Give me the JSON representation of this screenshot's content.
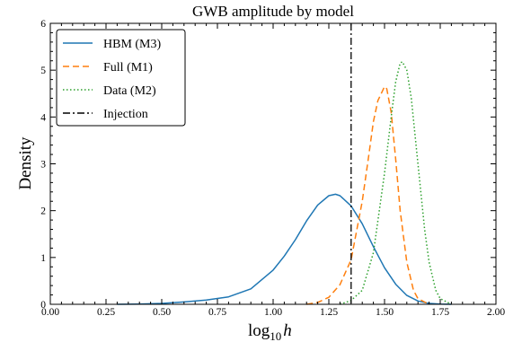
{
  "chart_data": {
    "type": "line",
    "title": "GWB amplitude by model",
    "xlabel_main": "log",
    "xlabel_sub": "10",
    "xlabel_var": "h",
    "ylabel": "Density",
    "xlim": [
      0.0,
      2.0
    ],
    "ylim": [
      0,
      6
    ],
    "xticks": [
      "0.00",
      "0.25",
      "0.50",
      "0.75",
      "1.00",
      "1.25",
      "1.50",
      "1.75",
      "2.00"
    ],
    "yticks": [
      "0",
      "1",
      "2",
      "3",
      "4",
      "5",
      "6"
    ],
    "grid": false,
    "legend_position": "top-left",
    "injection": {
      "name": "Injection",
      "x": 1.35,
      "color": "#000000"
    },
    "series": [
      {
        "name": "HBM (M3)",
        "color": "#1f77b4",
        "style": "solid",
        "x": [
          0.3,
          0.4,
          0.5,
          0.6,
          0.7,
          0.8,
          0.9,
          1.0,
          1.05,
          1.1,
          1.15,
          1.2,
          1.25,
          1.28,
          1.3,
          1.35,
          1.4,
          1.45,
          1.5,
          1.55,
          1.6,
          1.65,
          1.7,
          1.75,
          1.8
        ],
        "y": [
          0.0,
          0.005,
          0.02,
          0.05,
          0.09,
          0.16,
          0.33,
          0.73,
          1.03,
          1.38,
          1.78,
          2.12,
          2.32,
          2.35,
          2.32,
          2.1,
          1.72,
          1.23,
          0.78,
          0.43,
          0.19,
          0.07,
          0.02,
          0.005,
          0.0
        ]
      },
      {
        "name": "Full (M1)",
        "color": "#ff7f0e",
        "style": "dashed",
        "x": [
          1.15,
          1.2,
          1.25,
          1.3,
          1.35,
          1.4,
          1.43,
          1.45,
          1.47,
          1.5,
          1.51,
          1.53,
          1.55,
          1.57,
          1.6,
          1.63,
          1.65,
          1.7
        ],
        "y": [
          0.0,
          0.04,
          0.15,
          0.42,
          0.95,
          2.2,
          3.2,
          3.9,
          4.35,
          4.65,
          4.6,
          4.1,
          3.1,
          2.0,
          0.9,
          0.3,
          0.12,
          0.0
        ]
      },
      {
        "name": "Data (M2)",
        "color": "#2ca02c",
        "style": "dotted",
        "x": [
          1.3,
          1.35,
          1.4,
          1.45,
          1.5,
          1.53,
          1.55,
          1.57,
          1.58,
          1.6,
          1.62,
          1.65,
          1.68,
          1.7,
          1.73,
          1.75,
          1.8
        ],
        "y": [
          0.0,
          0.08,
          0.3,
          1.1,
          2.8,
          4.0,
          4.75,
          5.15,
          5.18,
          5.0,
          4.4,
          3.0,
          1.6,
          0.9,
          0.3,
          0.12,
          0.0
        ]
      }
    ]
  }
}
